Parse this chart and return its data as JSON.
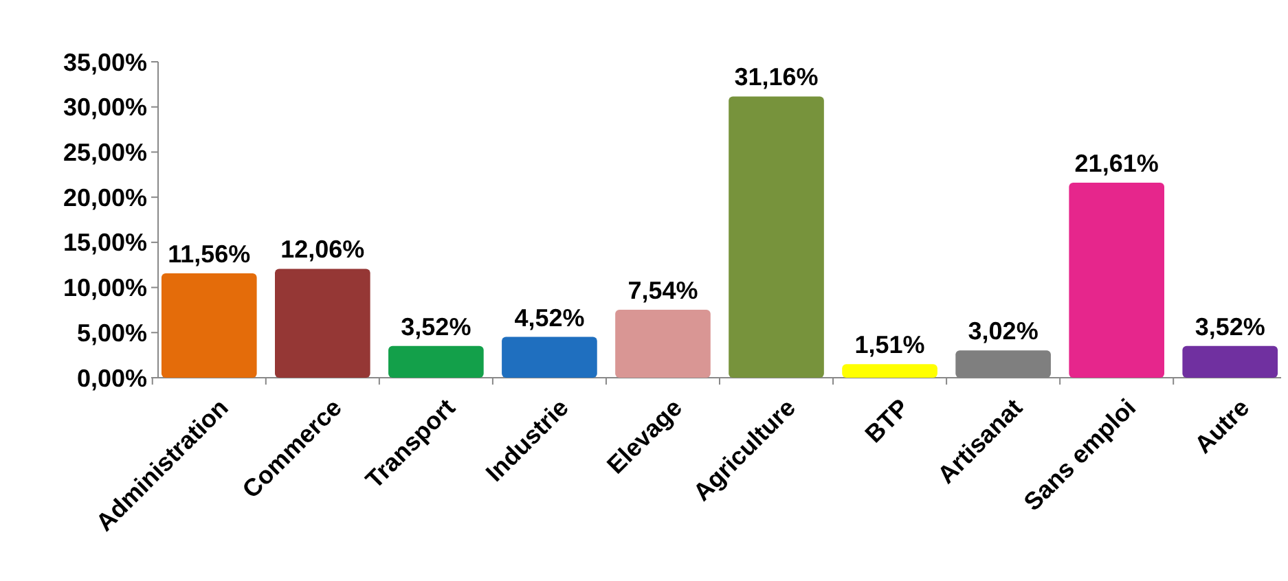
{
  "chart_data": {
    "type": "bar",
    "categories": [
      "Administration",
      "Commerce",
      "Transport",
      "Industrie",
      "Elevage",
      "Agriculture",
      "BTP",
      "Artisanat",
      "Sans emploi",
      "Autre"
    ],
    "values": [
      11.56,
      12.06,
      3.52,
      4.52,
      7.54,
      31.16,
      1.51,
      3.02,
      21.61,
      3.52
    ],
    "colors": [
      "#e46c0a",
      "#953735",
      "#13a04a",
      "#1f6fbf",
      "#d99694",
      "#77933c",
      "#ffff00",
      "#7f7f7f",
      "#e6268c",
      "#7030a0"
    ],
    "value_labels": [
      "11,56%",
      "12,06%",
      "3,52%",
      "4,52%",
      "7,54%",
      "31,16%",
      "1,51%",
      "3,02%",
      "21,61%",
      "3,52%"
    ],
    "ylim": [
      0,
      35
    ],
    "yticks": [
      {
        "value": 0,
        "label": "0,00%"
      },
      {
        "value": 5,
        "label": "5,00%"
      },
      {
        "value": 10,
        "label": "10,00%"
      },
      {
        "value": 15,
        "label": "15,00%"
      },
      {
        "value": 20,
        "label": "20,00%"
      },
      {
        "value": 25,
        "label": "25,00%"
      },
      {
        "value": 30,
        "label": "30,00%"
      },
      {
        "value": 35,
        "label": "35,00%"
      }
    ],
    "grid": false
  }
}
